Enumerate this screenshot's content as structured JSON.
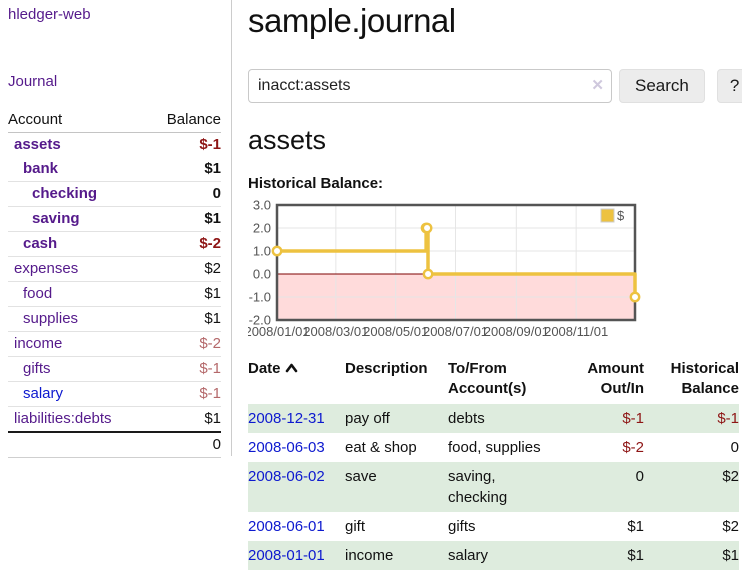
{
  "app": {
    "title": "hledger-web"
  },
  "nav": {
    "journal": "Journal"
  },
  "sidebar": {
    "header": {
      "account": "Account",
      "balance": "Balance"
    },
    "accounts": [
      {
        "name": "assets",
        "balance": "$-1",
        "depth": 1,
        "bold": true,
        "neg": "strong",
        "blue": false
      },
      {
        "name": "bank",
        "balance": "$1",
        "depth": 2,
        "bold": true,
        "neg": "none",
        "blue": false
      },
      {
        "name": "checking",
        "balance": "0",
        "depth": 3,
        "bold": true,
        "neg": "none",
        "blue": false
      },
      {
        "name": "saving",
        "balance": "$1",
        "depth": 3,
        "bold": true,
        "neg": "none",
        "blue": false
      },
      {
        "name": "cash",
        "balance": "$-2",
        "depth": 2,
        "bold": true,
        "neg": "strong",
        "blue": false
      },
      {
        "name": "expenses",
        "balance": "$2",
        "depth": 1,
        "bold": false,
        "neg": "none",
        "blue": false
      },
      {
        "name": "food",
        "balance": "$1",
        "depth": 2,
        "bold": false,
        "neg": "none",
        "blue": false
      },
      {
        "name": "supplies",
        "balance": "$1",
        "depth": 2,
        "bold": false,
        "neg": "none",
        "blue": false
      },
      {
        "name": "income",
        "balance": "$-2",
        "depth": 1,
        "bold": false,
        "neg": "muted",
        "blue": false
      },
      {
        "name": "gifts",
        "balance": "$-1",
        "depth": 2,
        "bold": false,
        "neg": "muted",
        "blue": false
      },
      {
        "name": "salary",
        "balance": "$-1",
        "depth": 2,
        "bold": false,
        "neg": "muted",
        "blue": true
      },
      {
        "name": "liabilities:debts",
        "balance": "$1",
        "depth": 1,
        "bold": false,
        "neg": "none",
        "blue": false
      }
    ],
    "total": "0"
  },
  "header": {
    "title": "sample.journal"
  },
  "search": {
    "value": "inacct:assets",
    "clear_glyph": "✕",
    "button_label": "Search",
    "help_label": "?"
  },
  "account_page": {
    "heading": "assets",
    "chart_title": "Historical Balance:"
  },
  "chart_data": {
    "type": "line",
    "step": true,
    "title": "Historical Balance",
    "legend": "$",
    "legend_position": "top-right",
    "series": [
      {
        "name": "$",
        "color": "#EDC240",
        "points": [
          [
            "2008-01-01",
            1
          ],
          [
            "2008-06-01",
            2
          ],
          [
            "2008-06-02",
            2
          ],
          [
            "2008-06-03",
            0
          ],
          [
            "2008-12-31",
            -1
          ]
        ]
      }
    ],
    "xrange": [
      "2008-01-01",
      "2008-12-31"
    ],
    "ylim": [
      -2,
      3
    ],
    "yticks": [
      "3.0",
      "2.0",
      "1.0",
      "0.0",
      "-1.0",
      "-2.0"
    ],
    "xticks": [
      "2008/01/01",
      "2008/03/01",
      "2008/05/01",
      "2008/07/01",
      "2008/09/01",
      "2008/11/01"
    ],
    "grid": true,
    "grid_color": "#e6e6e6",
    "border_color": "#545454",
    "tick_label_color": "#545454",
    "zero_line_color": "#7d0000",
    "negative_fill": "#ffdbdb"
  },
  "register": {
    "columns": [
      "Date",
      "Description",
      "To/From Account(s)",
      "Amount Out/In",
      "Historical Balance"
    ],
    "rows": [
      {
        "date": "2008-12-31",
        "description": "pay off",
        "accounts": "debts",
        "amount": "$-1",
        "balance": "$-1",
        "amount_neg": true,
        "balance_neg": true,
        "shaded": true
      },
      {
        "date": "2008-06-03",
        "description": "eat & shop",
        "accounts": "food, supplies",
        "amount": "$-2",
        "balance": "0",
        "amount_neg": true,
        "balance_neg": false,
        "shaded": false
      },
      {
        "date": "2008-06-02",
        "description": "save",
        "accounts": "saving, checking",
        "amount": "0",
        "balance": "$2",
        "amount_neg": false,
        "balance_neg": false,
        "shaded": true
      },
      {
        "date": "2008-06-01",
        "description": "gift",
        "accounts": "gifts",
        "amount": "$1",
        "balance": "$2",
        "amount_neg": false,
        "balance_neg": false,
        "shaded": false
      },
      {
        "date": "2008-01-01",
        "description": "income",
        "accounts": "salary",
        "amount": "$1",
        "balance": "$1",
        "amount_neg": false,
        "balance_neg": false,
        "shaded": true
      }
    ]
  }
}
